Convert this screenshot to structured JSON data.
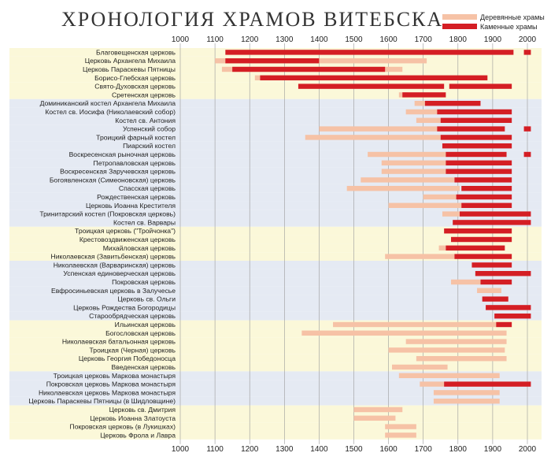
{
  "chart_data": {
    "type": "bar",
    "title": "ХРОНОЛОГИЯ ХРАМОВ ВИТЕБСКА",
    "xlim": [
      1000,
      2000
    ],
    "x_ticks": [
      1000,
      1100,
      1200,
      1300,
      1400,
      1500,
      1600,
      1700,
      1800,
      1900,
      2000
    ],
    "legend": {
      "position": "top-right",
      "wooden_label": "Деревянные храмы",
      "stone_label": "Каменные храмы"
    },
    "colors": {
      "wooden": "#f6c2a6",
      "stone": "#d41e24",
      "band_yellow": "#fbf8d9",
      "band_blue": "#e5eaf3",
      "grid": "#9a9a9a"
    },
    "rows": [
      {
        "name": "Благовещенская церковь",
        "band": "yellow",
        "wood": [],
        "stone": [
          [
            1130,
            1960
          ],
          [
            1990,
            2010
          ]
        ]
      },
      {
        "name": "Церковь Архангела Михаила",
        "band": "yellow",
        "wood": [
          [
            1100,
            1710
          ]
        ],
        "stone": [
          [
            1130,
            1400
          ]
        ]
      },
      {
        "name": "Церковь Параскевы Пятницы",
        "band": "yellow",
        "wood": [
          [
            1120,
            1640
          ]
        ],
        "stone": [
          [
            1150,
            1590
          ]
        ]
      },
      {
        "name": "Борисо-Глебская церковь",
        "band": "yellow",
        "wood": [
          [
            1215,
            1260
          ]
        ],
        "stone": [
          [
            1230,
            1885
          ]
        ]
      },
      {
        "name": "Свято-Духовская церковь",
        "band": "yellow",
        "wood": [],
        "stone": [
          [
            1340,
            1760
          ],
          [
            1775,
            1955
          ]
        ]
      },
      {
        "name": "Сретенская церковь",
        "band": "yellow",
        "wood": [
          [
            1630,
            1655
          ]
        ],
        "stone": [
          [
            1640,
            1765
          ]
        ]
      },
      {
        "name": "Доминиканский костел Архангела Михаила",
        "band": "blue",
        "wood": [
          [
            1675,
            1705
          ]
        ],
        "stone": [
          [
            1705,
            1865
          ]
        ]
      },
      {
        "name": "Костел св. Иосифа (Николаевский собор)",
        "band": "blue",
        "wood": [
          [
            1650,
            1740
          ]
        ],
        "stone": [
          [
            1740,
            1955
          ]
        ]
      },
      {
        "name": "Костел св. Антония",
        "band": "blue",
        "wood": [
          [
            1680,
            1750
          ]
        ],
        "stone": [
          [
            1750,
            1955
          ]
        ]
      },
      {
        "name": "Успенский собор",
        "band": "blue",
        "wood": [
          [
            1400,
            1740
          ]
        ],
        "stone": [
          [
            1740,
            1935
          ],
          [
            1990,
            2010
          ]
        ]
      },
      {
        "name": "Троицкий фарный костел",
        "band": "blue",
        "wood": [
          [
            1360,
            1750
          ]
        ],
        "stone": [
          [
            1750,
            1955
          ]
        ]
      },
      {
        "name": "Пиарский костел",
        "band": "blue",
        "wood": [],
        "stone": [
          [
            1755,
            1955
          ]
        ]
      },
      {
        "name": "Воскресенская рыночная церковь",
        "band": "blue",
        "wood": [
          [
            1540,
            1765
          ]
        ],
        "stone": [
          [
            1765,
            1940
          ],
          [
            1990,
            2010
          ]
        ]
      },
      {
        "name": "Петропавловская церковь",
        "band": "blue",
        "wood": [
          [
            1580,
            1765
          ]
        ],
        "stone": [
          [
            1765,
            1955
          ]
        ]
      },
      {
        "name": "Воскресенская Заручевская церковь",
        "band": "blue",
        "wood": [
          [
            1580,
            1765
          ]
        ],
        "stone": [
          [
            1765,
            1955
          ]
        ]
      },
      {
        "name": "Богоявленская (Симеоновская) церковь",
        "band": "blue",
        "wood": [
          [
            1520,
            1790
          ]
        ],
        "stone": [
          [
            1790,
            1955
          ]
        ]
      },
      {
        "name": "Спасская церковь",
        "band": "blue",
        "wood": [
          [
            1480,
            1805
          ]
        ],
        "stone": [
          [
            1810,
            1955
          ]
        ]
      },
      {
        "name": "Рождественская церковь",
        "band": "blue",
        "wood": [
          [
            1700,
            1795
          ]
        ],
        "stone": [
          [
            1795,
            1955
          ]
        ]
      },
      {
        "name": "Церковь Иоанна Крестителя",
        "band": "blue",
        "wood": [
          [
            1600,
            1810
          ]
        ],
        "stone": [
          [
            1810,
            1955
          ]
        ]
      },
      {
        "name": "Тринитарский костел (Покровская церковь)",
        "band": "blue",
        "wood": [
          [
            1755,
            1805
          ]
        ],
        "stone": [
          [
            1805,
            2010
          ]
        ]
      },
      {
        "name": "Костел св. Варвары",
        "band": "blue",
        "wood": [],
        "stone": [
          [
            1785,
            2010
          ]
        ]
      },
      {
        "name": "Троицкая церковь (\"Тройчонка\")",
        "band": "yellow",
        "wood": [],
        "stone": [
          [
            1760,
            1955
          ]
        ]
      },
      {
        "name": "Крестовоздвиженская церковь",
        "band": "yellow",
        "wood": [],
        "stone": [
          [
            1780,
            1955
          ]
        ]
      },
      {
        "name": "Михайловская церковь",
        "band": "yellow",
        "wood": [
          [
            1745,
            1765
          ]
        ],
        "stone": [
          [
            1765,
            1935
          ]
        ]
      },
      {
        "name": "Николаевская (Завитьбенская) церковь",
        "band": "yellow",
        "wood": [
          [
            1590,
            1790
          ]
        ],
        "stone": [
          [
            1790,
            1955
          ]
        ]
      },
      {
        "name": "Николаевская (Варваринская) церковь",
        "band": "blue",
        "wood": [],
        "stone": [
          [
            1840,
            1955
          ]
        ]
      },
      {
        "name": "Успенская единоверческая церковь",
        "band": "blue",
        "wood": [],
        "stone": [
          [
            1850,
            2010
          ]
        ]
      },
      {
        "name": "Покровская церковь",
        "band": "blue",
        "wood": [
          [
            1780,
            1865
          ]
        ],
        "stone": [
          [
            1865,
            1955
          ]
        ]
      },
      {
        "name": "Евфросиньевская церковь в Залучесье",
        "band": "blue",
        "wood": [
          [
            1855,
            1925
          ]
        ],
        "stone": []
      },
      {
        "name": "Церковь св. Ольги",
        "band": "blue",
        "wood": [],
        "stone": [
          [
            1870,
            1945
          ]
        ]
      },
      {
        "name": "Церковь Рождества Богородицы",
        "band": "blue",
        "wood": [],
        "stone": [
          [
            1880,
            2010
          ]
        ]
      },
      {
        "name": "Старообрядческая церковь",
        "band": "blue",
        "wood": [],
        "stone": [
          [
            1905,
            2010
          ]
        ]
      },
      {
        "name": "Ильинская церковь",
        "band": "yellow",
        "wood": [
          [
            1440,
            1910
          ]
        ],
        "stone": [
          [
            1910,
            1955
          ]
        ]
      },
      {
        "name": "Богословская церковь",
        "band": "yellow",
        "wood": [
          [
            1350,
            1940
          ]
        ],
        "stone": []
      },
      {
        "name": "Николаевская батальонная церковь",
        "band": "yellow",
        "wood": [
          [
            1650,
            1940
          ]
        ],
        "stone": []
      },
      {
        "name": "Троицкая (Черная) церковь",
        "band": "yellow",
        "wood": [
          [
            1600,
            1935
          ]
        ],
        "stone": []
      },
      {
        "name": "Церковь Георгия Победоносца",
        "band": "yellow",
        "wood": [
          [
            1680,
            1940
          ]
        ],
        "stone": []
      },
      {
        "name": "Введенская церковь",
        "band": "yellow",
        "wood": [
          [
            1610,
            1770
          ]
        ],
        "stone": []
      },
      {
        "name": "Троицкая церковь Маркова монастыря",
        "band": "blue",
        "wood": [
          [
            1630,
            1920
          ]
        ],
        "stone": []
      },
      {
        "name": "Покровская церковь Маркова монастыря",
        "band": "blue",
        "wood": [
          [
            1690,
            1760
          ]
        ],
        "stone": [
          [
            1760,
            2010
          ]
        ]
      },
      {
        "name": "Николаевская церковь Маркова монастыря",
        "band": "blue",
        "wood": [
          [
            1730,
            1920
          ]
        ],
        "stone": []
      },
      {
        "name": "Церковь Параскевы Пятницы (в Шидловщине)",
        "band": "blue",
        "wood": [
          [
            1730,
            1920
          ]
        ],
        "stone": []
      },
      {
        "name": "Церковь св. Дмитрия",
        "band": "yellow",
        "wood": [
          [
            1500,
            1640
          ]
        ],
        "stone": []
      },
      {
        "name": "Церковь Иоанна Златоуста",
        "band": "yellow",
        "wood": [
          [
            1500,
            1620
          ]
        ],
        "stone": []
      },
      {
        "name": "Покровская церковь (в Лукишках)",
        "band": "yellow",
        "wood": [
          [
            1590,
            1680
          ]
        ],
        "stone": []
      },
      {
        "name": "Церковь Фрола и Лавра",
        "band": "yellow",
        "wood": [
          [
            1590,
            1680
          ]
        ],
        "stone": []
      }
    ]
  }
}
